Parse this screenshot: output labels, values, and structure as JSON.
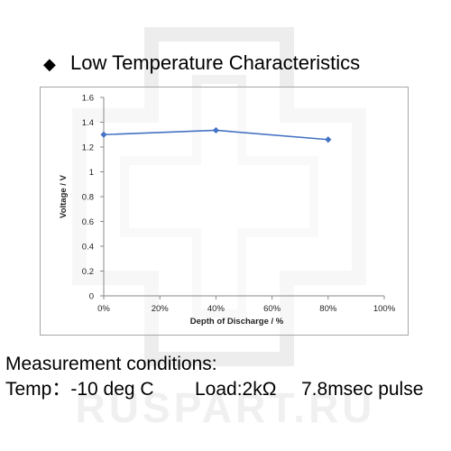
{
  "heading": {
    "bullet": "◆",
    "title": "Low Temperature Characteristics"
  },
  "watermark_text": "RUSPART.RU",
  "chart_data": {
    "type": "line",
    "x": [
      0,
      40,
      80
    ],
    "series": [
      {
        "values": [
          1.3,
          1.335,
          1.26
        ],
        "color": "#4472c4"
      }
    ],
    "xlabel": "Depth of Discharge / %",
    "ylabel": "Voltage  /  V",
    "xlim": [
      0,
      100
    ],
    "ylim": [
      0,
      1.6
    ],
    "x_ticks": [
      "0%",
      "20%",
      "40%",
      "60%",
      "80%",
      "100%"
    ],
    "y_ticks": [
      "0",
      "0.2",
      "0.4",
      "0.6",
      "0.8",
      "1",
      "1.2",
      "1.4",
      "1.6"
    ],
    "grid": false,
    "marker": "diamond"
  },
  "conditions": {
    "title": "Measurement conditions:",
    "temp": "Temp：-10 deg C",
    "load": "Load:2kΩ",
    "pulse": "7.8msec pulse"
  }
}
